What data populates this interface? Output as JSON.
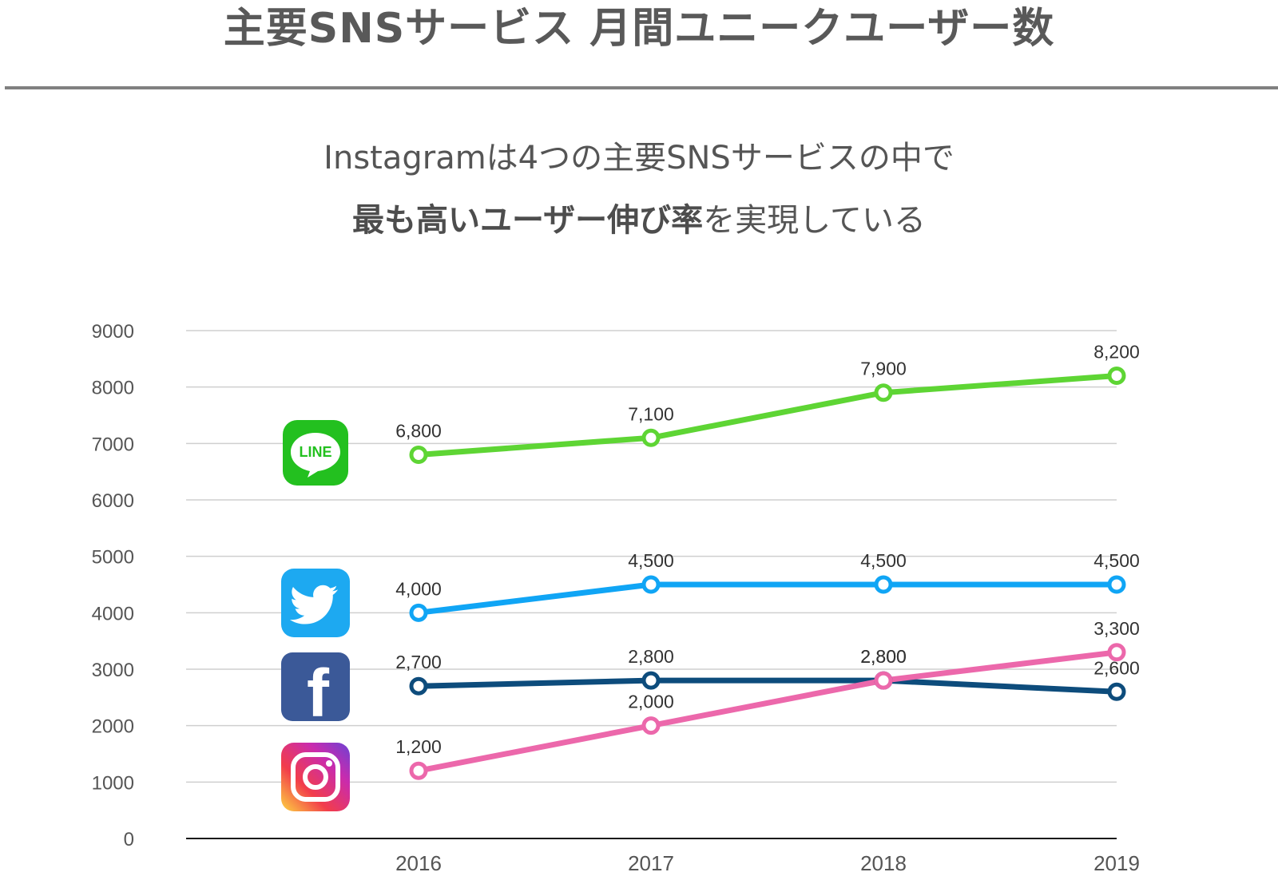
{
  "header": {
    "title": "主要SNSサービス 月間ユニークユーザー数",
    "subtitle_line1": "Instagramは4つの主要SNSサービスの中で",
    "subtitle_line2_bold": "最も高いユーザー伸び率",
    "subtitle_line2_rest": "を実現している"
  },
  "logos": [
    {
      "name": "line-logo-icon",
      "text": "LINE"
    },
    {
      "name": "twitter-logo-icon"
    },
    {
      "name": "facebook-logo-icon",
      "text": "f"
    },
    {
      "name": "instagram-logo-icon"
    }
  ],
  "chart_data": {
    "type": "line",
    "categories": [
      "2016",
      "2017",
      "2018",
      "2019"
    ],
    "y_ticks": [
      "0",
      "1000",
      "2000",
      "3000",
      "4000",
      "5000",
      "6000",
      "7000",
      "8000",
      "9000"
    ],
    "ylim": [
      0,
      9000
    ],
    "grid": true,
    "series": [
      {
        "key": "line",
        "color": "#5ed534",
        "values": [
          6800,
          7100,
          7900,
          8200
        ],
        "labels": [
          "6,800",
          "7,100",
          "7,900",
          "8,200"
        ]
      },
      {
        "key": "twitter",
        "color": "#10a5f5",
        "values": [
          4000,
          4500,
          4500,
          4500
        ],
        "labels": [
          "4,000",
          "4,500",
          "4,500",
          "4,500"
        ]
      },
      {
        "key": "facebook",
        "color": "#0d4c7c",
        "values": [
          2700,
          2800,
          2800,
          2600
        ],
        "labels": [
          "2,700",
          "2,800",
          "2,800",
          "2,600"
        ]
      },
      {
        "key": "instagram",
        "color": "#ec68ab",
        "values": [
          1200,
          2000,
          2800,
          3300
        ],
        "labels": [
          "1,200",
          "2,000",
          "2,800",
          "3,300"
        ]
      }
    ]
  }
}
